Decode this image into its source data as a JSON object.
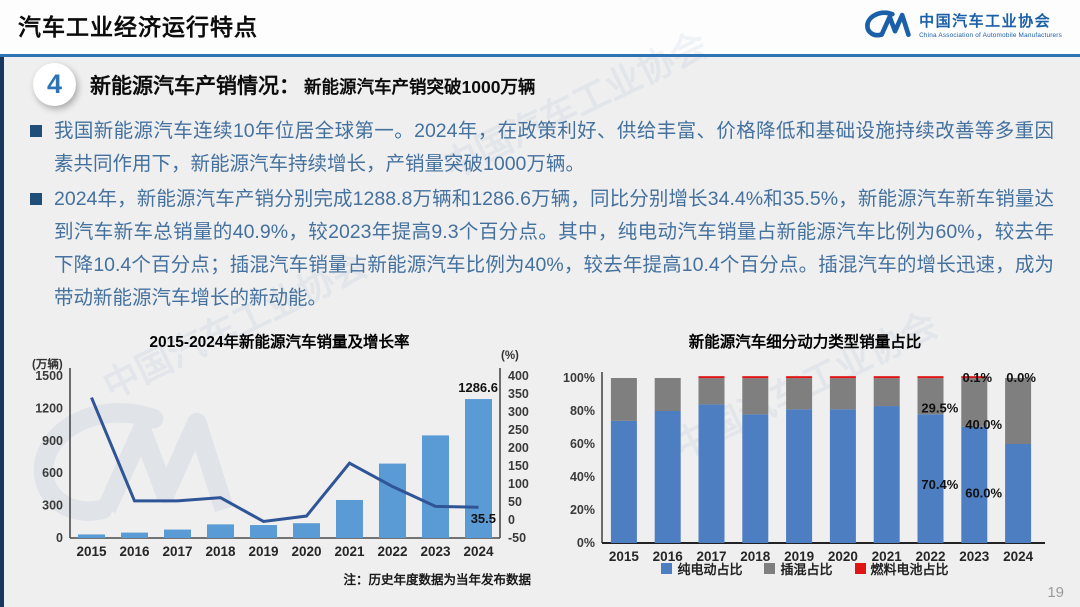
{
  "header": {
    "title": "汽车工业经济运行特点",
    "logo": {
      "name_cn": "中国汽车工业协会",
      "name_en": "China Association of Automobile Manufacturers",
      "color": "#1a5fa8"
    }
  },
  "section": {
    "number": "4",
    "title": "新能源汽车产销情况：",
    "subtitle": "新能源汽车产销突破1000万辆"
  },
  "bullets": [
    "我国新能源汽车连续10年位居全球第一。2024年，在政策利好、供给丰富、价格降低和基础设施持续改善等多重因素共同作用下，新能源汽车持续增长，产销量突破1000万辆。",
    "2024年，新能源汽车产销分别完成1288.8万辆和1286.6万辆，同比分别增长34.4%和35.5%，新能源汽车新车销量达到汽车新车总销量的40.9%，较2023年提高9.3个百分点。其中，纯电动汽车销量占新能源汽车比例为60%，较去年下降10.4个百分点；插混汽车销量占新能源汽车比例为40%，较去年提高10.4个百分点。插混汽车的增长迅速，成为带动新能源汽车增长的新动能。"
  ],
  "watermark": "中国汽车工业协会",
  "page_number": "19",
  "accent_colors": {
    "rule_blue": "#2e74b5",
    "strip_navy": "#17375e",
    "body_text_blue": "#44719e"
  },
  "chart_data": [
    {
      "type": "bar",
      "subtype": "combo-bar-line",
      "title": "2015-2024年新能源汽车销量及增长率",
      "categories": [
        "2015",
        "2016",
        "2017",
        "2018",
        "2019",
        "2020",
        "2021",
        "2022",
        "2023",
        "2024"
      ],
      "series": [
        {
          "name": "销量",
          "type": "bar",
          "axis": "left",
          "unit": "万辆",
          "color": "#5b9bd5",
          "values": [
            33,
            50,
            78,
            126,
            120,
            137,
            352,
            689,
            950,
            1286.6
          ],
          "end_label": "1286.6"
        },
        {
          "name": "增长率",
          "type": "line",
          "axis": "right",
          "unit": "%",
          "color": "#2f5597",
          "values": [
            340,
            53,
            53,
            62,
            -4,
            11,
            158,
            93,
            38,
            35.5
          ],
          "end_label": "35.5"
        }
      ],
      "left_axis": {
        "unit": "(万辆)",
        "min": 0,
        "max": 1500,
        "step": 300
      },
      "right_axis": {
        "unit": "(%)",
        "min": -50,
        "max": 400,
        "step": 50
      },
      "grid": false,
      "legend_position": "none",
      "note": "注：历史年度数据为当年发布数据"
    },
    {
      "type": "bar",
      "subtype": "stacked-percent",
      "title": "新能源汽车细分动力类型销量占比",
      "categories": [
        "2015",
        "2016",
        "2017",
        "2018",
        "2019",
        "2020",
        "2021",
        "2022",
        "2023",
        "2024"
      ],
      "series": [
        {
          "name": "纯电动占比",
          "color": "#4d7ec2",
          "values": [
            74,
            80,
            84,
            78,
            81,
            81,
            83,
            78,
            70.4,
            60.0
          ],
          "labels": [
            null,
            null,
            null,
            null,
            null,
            null,
            null,
            null,
            "70.4%",
            "60.0%"
          ]
        },
        {
          "name": "插混占比",
          "color": "#7f7f7f",
          "values": [
            26,
            20,
            15.9,
            21.9,
            18.9,
            18.9,
            16.9,
            21.9,
            29.5,
            40.0
          ],
          "labels": [
            null,
            null,
            null,
            null,
            null,
            null,
            null,
            null,
            "29.5%",
            "40.0%"
          ]
        },
        {
          "name": "燃料电池占比",
          "color": "#e01414",
          "values": [
            0,
            0,
            0.1,
            0.1,
            0.1,
            0.1,
            0.1,
            0.1,
            0.1,
            0.0
          ],
          "labels": [
            null,
            null,
            null,
            null,
            null,
            null,
            null,
            null,
            "0.1%",
            "0.0%"
          ]
        }
      ],
      "y_axis": {
        "min": 0,
        "max": 100,
        "step": 20,
        "format": "percent"
      },
      "grid": false,
      "legend_position": "bottom"
    }
  ]
}
